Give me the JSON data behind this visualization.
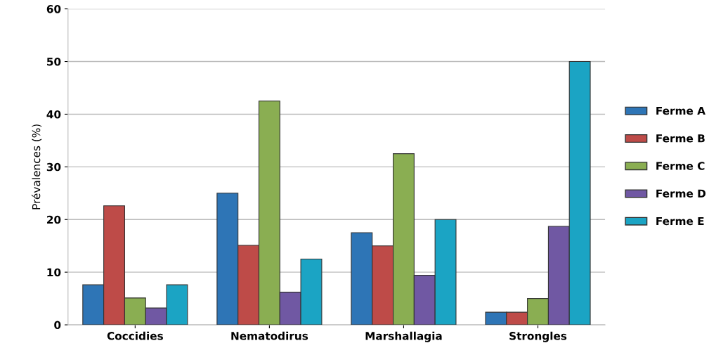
{
  "chart_data": {
    "type": "bar",
    "ylabel": "Prévalences (%)",
    "categories": [
      "Coccidies",
      "Nematodirus",
      "Marshallagia",
      "Strongles"
    ],
    "series": [
      {
        "name": "Ferme A",
        "color": "#2e75b6",
        "values": [
          7.6,
          25,
          17.5,
          2.4
        ]
      },
      {
        "name": "Ferme B",
        "color": "#be4b48",
        "values": [
          22.6,
          15.1,
          15,
          2.4
        ]
      },
      {
        "name": "Ferme C",
        "color": "#8aae52",
        "values": [
          5.1,
          42.5,
          32.5,
          5
        ]
      },
      {
        "name": "Ferme D",
        "color": "#7058a3",
        "values": [
          3.2,
          6.2,
          9.4,
          18.7
        ]
      },
      {
        "name": "Ferme E",
        "color": "#1ba4c4",
        "values": [
          7.6,
          12.5,
          20,
          50
        ]
      }
    ],
    "ylim": [
      0,
      60
    ],
    "yticks": [
      0,
      10,
      20,
      30,
      40,
      50,
      60
    ],
    "grid": "y",
    "legend": "right"
  }
}
